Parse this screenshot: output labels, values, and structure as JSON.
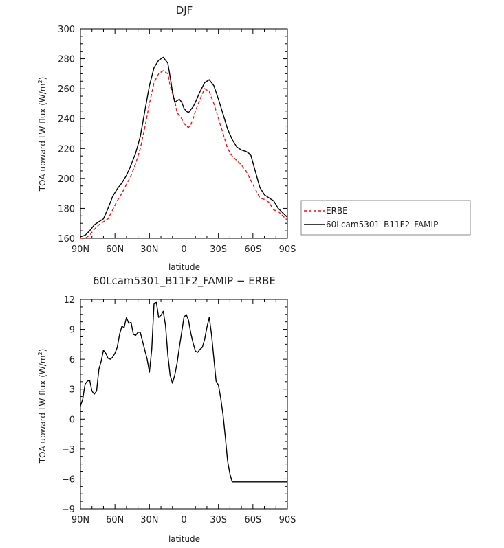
{
  "chart_data": [
    {
      "type": "line",
      "title": "DJF",
      "xlabel": "latitude",
      "ylabel": "TOA upward LW flux (W/m",
      "ylabel_sup": "2",
      "ylabel_close": ")",
      "xlim": [
        90,
        -90
      ],
      "ylim": [
        160,
        300
      ],
      "xticks": [
        90,
        60,
        30,
        0,
        -30,
        -60,
        -90
      ],
      "xtick_labels": [
        "90N",
        "60N",
        "30N",
        "0",
        "30S",
        "60S",
        "90S"
      ],
      "yticks": [
        160,
        180,
        200,
        220,
        240,
        260,
        280,
        300
      ],
      "ytick_labels": [
        "160",
        "180",
        "200",
        "220",
        "240",
        "260",
        "280",
        "300"
      ],
      "legend": "right",
      "series": [
        {
          "name": "ERBE",
          "color": "#e8141c",
          "dash": "dashed",
          "x": [
            90,
            86,
            82,
            78,
            74,
            70,
            66,
            62,
            58,
            54,
            50,
            46,
            42,
            38,
            34,
            30,
            26,
            22,
            18,
            14,
            12,
            8,
            6,
            4,
            2,
            0,
            -2,
            -4,
            -6,
            -8,
            -10,
            -14,
            -18,
            -22,
            -26,
            -30,
            -34,
            -38,
            -42,
            -46,
            -50,
            -54,
            -58,
            -62,
            -66,
            -70,
            -74,
            -78,
            -82,
            -86,
            -90
          ],
          "y": [
            160,
            160,
            162,
            166,
            169,
            171,
            173,
            179,
            185,
            190,
            196,
            202,
            210,
            220,
            234,
            250,
            264,
            270,
            272,
            270,
            262,
            252,
            244,
            242,
            240,
            237,
            235,
            234,
            236,
            240,
            245,
            253,
            260,
            258,
            250,
            240,
            230,
            220,
            215,
            212,
            209,
            205,
            199,
            193,
            187,
            186,
            184,
            179,
            178,
            175,
            172
          ]
        },
        {
          "name": "60Lcam5301_B11F2_FAMIP",
          "color": "#000000",
          "dash": "solid",
          "x": [
            90,
            86,
            82,
            78,
            74,
            70,
            66,
            62,
            58,
            54,
            50,
            46,
            42,
            38,
            34,
            30,
            26,
            22,
            18,
            14,
            12,
            10,
            8,
            6,
            4,
            2,
            0,
            -2,
            -4,
            -6,
            -8,
            -10,
            -14,
            -18,
            -22,
            -26,
            -30,
            -34,
            -38,
            -42,
            -46,
            -50,
            -54,
            -58,
            -62,
            -66,
            -70,
            -74,
            -78,
            -82,
            -86,
            -90
          ],
          "y": [
            161,
            162,
            165,
            169,
            171,
            173,
            180,
            188,
            193,
            197,
            202,
            209,
            217,
            228,
            245,
            262,
            274,
            279,
            281,
            277,
            268,
            258,
            251,
            252,
            253,
            251,
            247,
            245,
            244,
            246,
            248,
            251,
            258,
            264,
            266,
            262,
            253,
            243,
            233,
            226,
            221,
            219,
            218,
            216,
            205,
            194,
            189,
            187,
            185,
            180,
            177,
            174
          ]
        }
      ]
    },
    {
      "type": "line",
      "title": "60Lcam5301_B11F2_FAMIP − ERBE",
      "xlabel": "latitude",
      "ylabel": "TOA upward LW flux (W/m",
      "ylabel_sup": "2",
      "ylabel_close": ")",
      "xlim": [
        90,
        -90
      ],
      "ylim": [
        -9,
        12
      ],
      "xticks": [
        90,
        60,
        30,
        0,
        -30,
        -60,
        -90
      ],
      "xtick_labels": [
        "90N",
        "60N",
        "30N",
        "0",
        "30S",
        "60S",
        "90S"
      ],
      "yticks": [
        -9,
        -6,
        -3,
        0,
        3,
        6,
        9,
        12
      ],
      "ytick_labels": [
        "−9",
        "−6",
        "−3",
        "0",
        "3",
        "6",
        "9",
        "12"
      ],
      "series": [
        {
          "name": "",
          "color": "#000000",
          "dash": "solid",
          "x": [
            90,
            88,
            86,
            84,
            82,
            80,
            78,
            76,
            74,
            72,
            70,
            68,
            66,
            64,
            62,
            60,
            58,
            56,
            54,
            52,
            50,
            48,
            46,
            44,
            42,
            40,
            38,
            36,
            34,
            32,
            30,
            28,
            26,
            24,
            22,
            20,
            18,
            16,
            14,
            12,
            10,
            8,
            6,
            4,
            2,
            0,
            -2,
            -4,
            -6,
            -8,
            -10,
            -12,
            -14,
            -16,
            -18,
            -20,
            -22,
            -24,
            -26,
            -28,
            -30,
            -32,
            -34,
            -36,
            -38,
            -40,
            -42,
            -44,
            -46,
            -48,
            -50,
            -52,
            -54,
            -56,
            -58,
            -60,
            -62,
            -64,
            -66,
            -68,
            -70,
            -72,
            -74,
            -76,
            -78,
            -80,
            -82,
            -84,
            -86,
            -88,
            -90
          ],
          "y": [
            1.3,
            2.0,
            3.5,
            3.8,
            3.9,
            2.8,
            2.5,
            2.8,
            5.0,
            5.8,
            6.9,
            6.6,
            6.1,
            6.0,
            6.2,
            6.6,
            7.2,
            8.5,
            9.3,
            9.2,
            10.2,
            9.6,
            9.7,
            8.5,
            8.4,
            8.7,
            8.7,
            7.8,
            6.9,
            6.0,
            4.7,
            7.0,
            11.6,
            11.7,
            10.2,
            10.4,
            10.8,
            9.4,
            6.4,
            4.4,
            3.6,
            4.4,
            5.6,
            7.2,
            8.7,
            10.2,
            10.5,
            9.9,
            8.6,
            7.6,
            6.8,
            6.7,
            7.0,
            7.2,
            8.0,
            9.2,
            10.2,
            8.5,
            6.1,
            3.8,
            3.4,
            2.1,
            0.4,
            -1.8,
            -4.2,
            -5.5,
            -6.3,
            -6.3,
            -6.3,
            -6.3,
            -6.3,
            -6.3,
            -6.3,
            -6.3,
            -6.3,
            -6.3,
            -6.3,
            -6.3,
            -6.3,
            -6.3,
            -6.3,
            -6.3,
            -6.3,
            -6.3,
            -6.3,
            -6.3,
            -6.3,
            -6.3,
            -6.3,
            -6.3,
            -6.3
          ]
        }
      ]
    }
  ]
}
